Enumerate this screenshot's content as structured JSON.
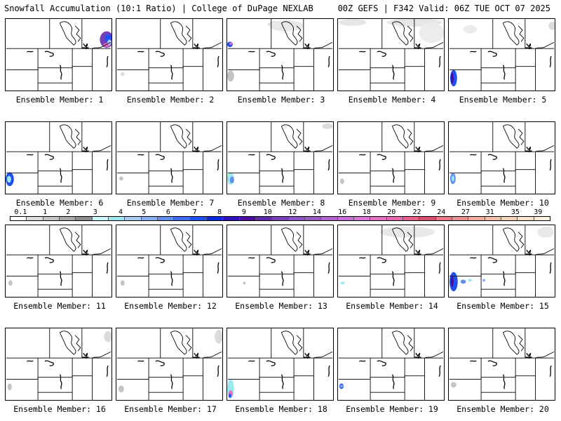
{
  "header": {
    "left": "Snowfall Accumulation (10:1 Ratio) | College of DuPage NEXLAB",
    "right": "00Z GEFS | F342 Valid: 06Z TUE OCT 07 2025"
  },
  "colorbar": {
    "labels": [
      "0.1",
      "1",
      "2",
      "3",
      "4",
      "5",
      "6",
      "7",
      "8",
      "9",
      "10",
      "12",
      "14",
      "16",
      "18",
      "20",
      "22",
      "24",
      "27",
      "31",
      "35",
      "39"
    ],
    "colors": [
      "#ffffff",
      "#dcdcdc",
      "#c4c4c4",
      "#a8a8a8",
      "#8c8c8c",
      "#ccf5fa",
      "#9fe8ef",
      "#a9c9f0",
      "#84b0f0",
      "#5f8ff0",
      "#3f6df0",
      "#2050f0",
      "#0a28e0",
      "#3010c0",
      "#4a0c9e",
      "#5c2aa8",
      "#7840b8",
      "#8f54c8",
      "#9a5ec2",
      "#b064cc",
      "#c86ed6",
      "#d876d4",
      "#e070c0",
      "#e868b0",
      "#e8608e",
      "#d8506e",
      "#e8788a",
      "#e89090",
      "#eeaa9a",
      "#f2c0a8",
      "#f6d2ba",
      "#f9e2cc",
      "#fcefe0"
    ]
  },
  "members": [
    {
      "caption": "Ensemble Member: 1"
    },
    {
      "caption": "Ensemble Member: 2"
    },
    {
      "caption": "Ensemble Member: 3"
    },
    {
      "caption": "Ensemble Member: 4"
    },
    {
      "caption": "Ensemble Member: 5"
    },
    {
      "caption": "Ensemble Member: 6"
    },
    {
      "caption": "Ensemble Member: 7"
    },
    {
      "caption": "Ensemble Member: 8"
    },
    {
      "caption": "Ensemble Member: 9"
    },
    {
      "caption": "Ensemble Member: 10"
    },
    {
      "caption": "Ensemble Member: 11"
    },
    {
      "caption": "Ensemble Member: 12"
    },
    {
      "caption": "Ensemble Member: 13"
    },
    {
      "caption": "Ensemble Member: 14"
    },
    {
      "caption": "Ensemble Member: 15"
    },
    {
      "caption": "Ensemble Member: 16"
    },
    {
      "caption": "Ensemble Member: 17"
    },
    {
      "caption": "Ensemble Member: 18"
    },
    {
      "caption": "Ensemble Member: 19"
    },
    {
      "caption": "Ensemble Member: 20"
    }
  ]
}
